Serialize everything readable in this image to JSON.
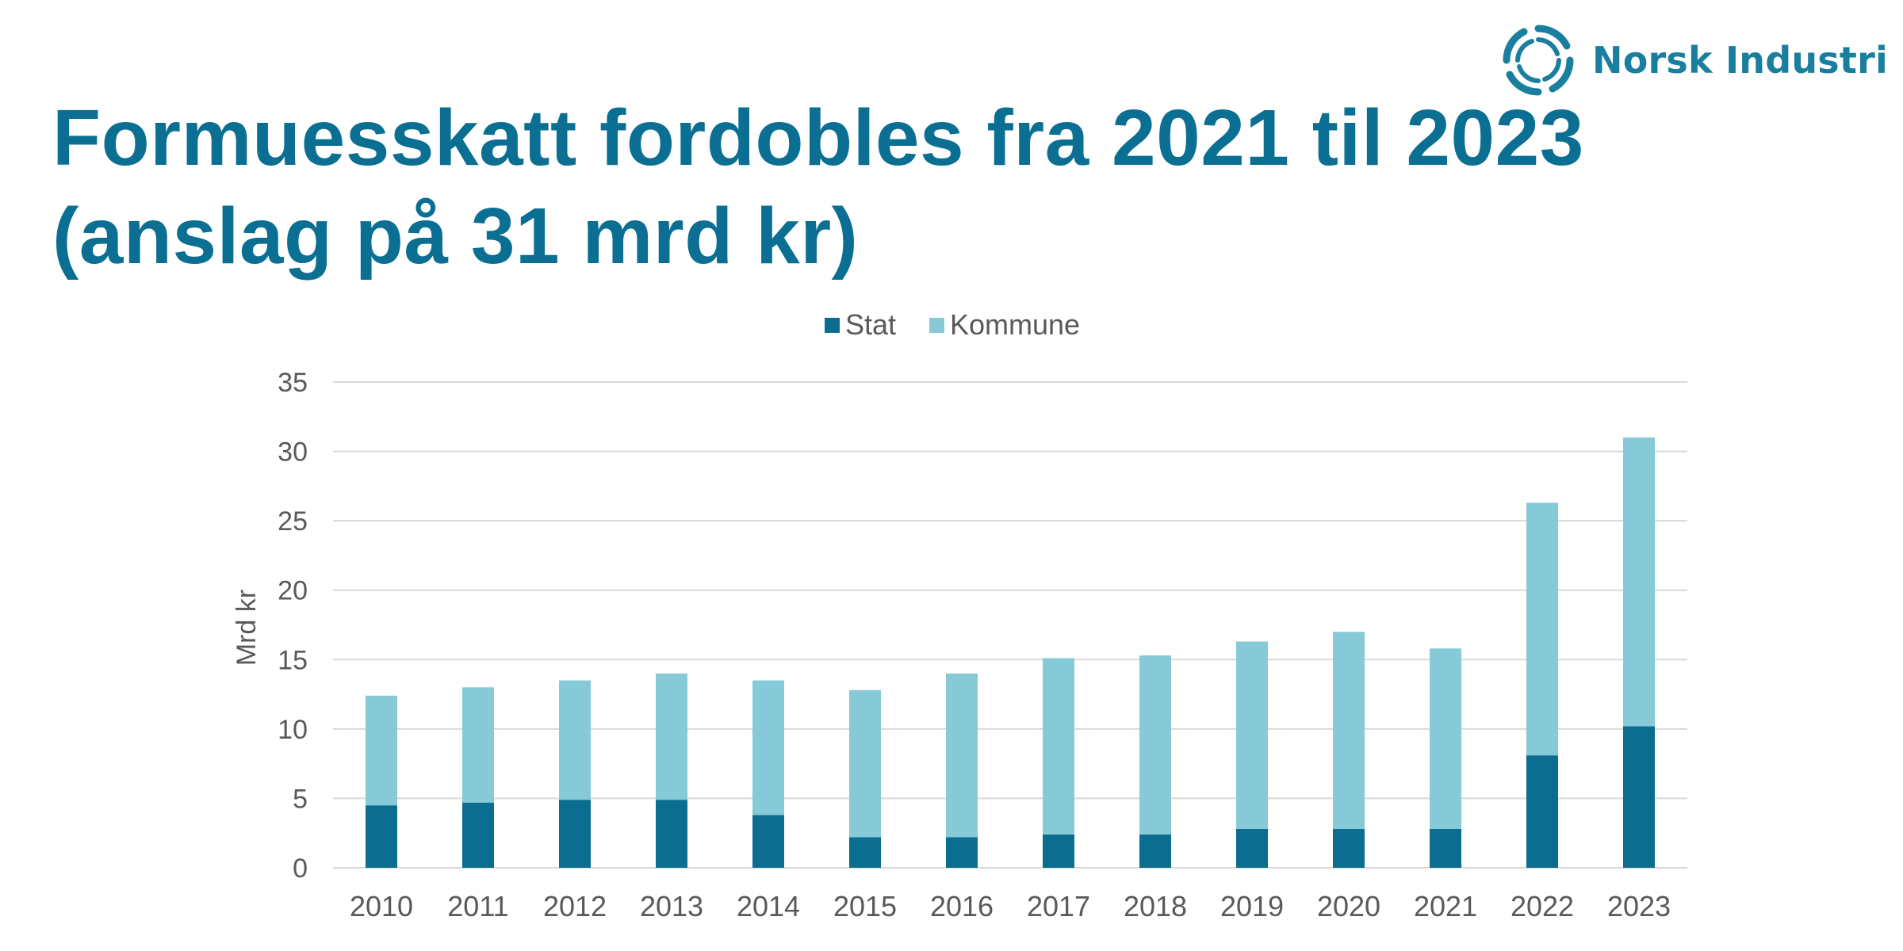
{
  "logo": {
    "name": "Norsk Industri"
  },
  "title": {
    "line1": "Formuesskatt fordobles fra 2021 til 2023",
    "line2": "(anslag på 31 mrd kr)"
  },
  "colors": {
    "title": "#0a6f92",
    "stat": "#0b6d8f",
    "kommune": "#86cad8",
    "grid": "#d9d9d9",
    "axis_text": "#595959"
  },
  "chart_data": {
    "type": "bar",
    "stacked": true,
    "categories": [
      "2010",
      "2011",
      "2012",
      "2013",
      "2014",
      "2015",
      "2016",
      "2017",
      "2018",
      "2019",
      "2020",
      "2021",
      "2022",
      "2023"
    ],
    "series": [
      {
        "name": "Stat",
        "values": [
          4.5,
          4.7,
          4.9,
          4.9,
          3.8,
          2.2,
          2.2,
          2.4,
          2.4,
          2.8,
          2.8,
          2.8,
          8.1,
          10.2
        ]
      },
      {
        "name": "Kommune",
        "values": [
          7.9,
          8.3,
          8.6,
          9.1,
          9.7,
          10.6,
          11.8,
          12.7,
          12.9,
          13.5,
          14.2,
          13.0,
          18.2,
          20.8
        ]
      }
    ],
    "ylabel": "Mrd kr",
    "xlabel": "",
    "ylim": [
      0,
      35
    ],
    "yticks": [
      "0",
      "5",
      "10",
      "15",
      "20",
      "25",
      "30",
      "35"
    ],
    "grid": true,
    "legend_position": "top-center"
  }
}
